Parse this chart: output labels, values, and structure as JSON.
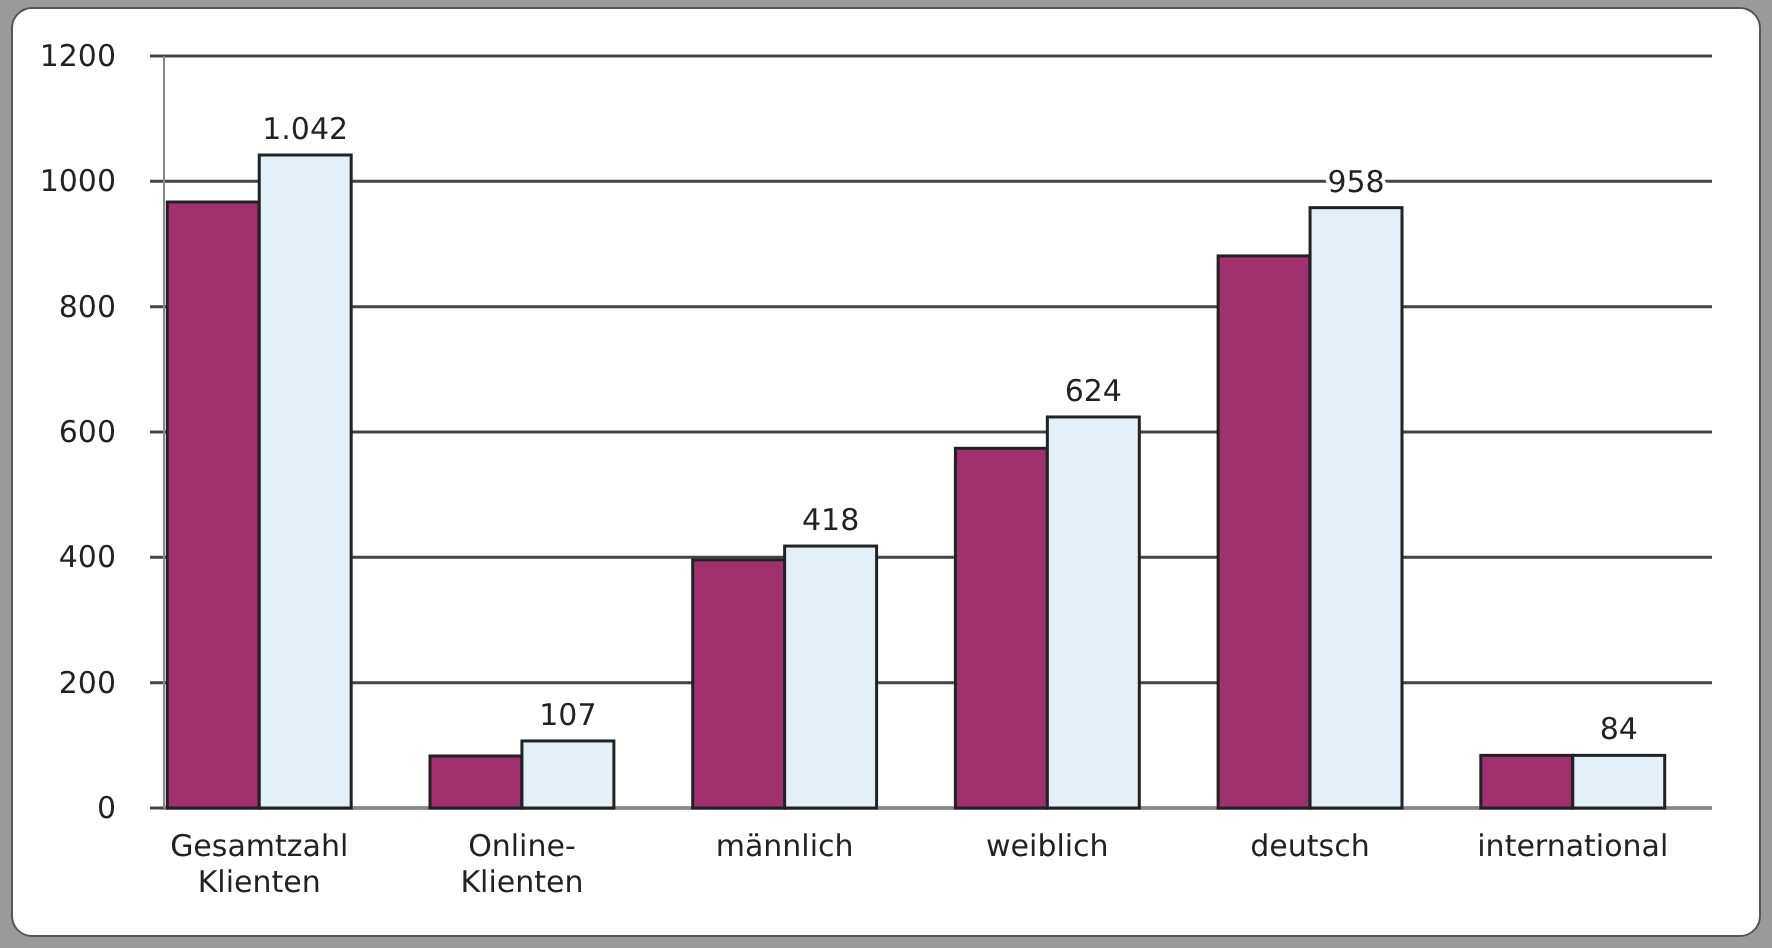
{
  "chart_data": {
    "type": "bar",
    "categories": [
      "Gesamtzahl Klienten",
      "Online-Klienten",
      "männlich",
      "weiblich",
      "deutsch",
      "international"
    ],
    "series": [
      {
        "color": "#a0306e",
        "values": [
          967,
          83,
          396,
          574,
          881,
          84
        ]
      },
      {
        "color": "#e4f0f7",
        "values": [
          1042,
          107,
          418,
          624,
          958,
          84
        ],
        "value_labels": [
          "1.042",
          "107",
          "418",
          "624",
          "958",
          "84"
        ]
      }
    ],
    "ylim": [
      0,
      1200
    ],
    "yticks": [
      0,
      200,
      400,
      600,
      800,
      1000,
      1200
    ],
    "grid": "y"
  }
}
